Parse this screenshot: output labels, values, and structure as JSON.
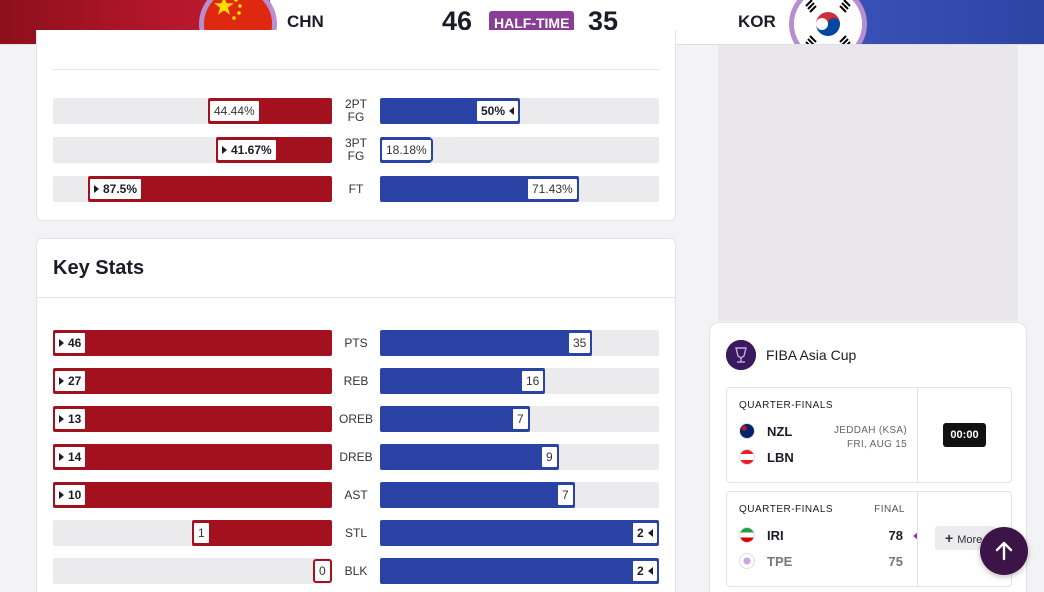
{
  "header": {
    "home": {
      "code": "CHN",
      "score": "46",
      "color": "#a3111f"
    },
    "away": {
      "code": "KOR",
      "score": "35",
      "color": "#2a43a4"
    },
    "status": "HALF-TIME"
  },
  "shooting": {
    "rows": [
      {
        "label_line1": "2PT",
        "label_line2": "FG",
        "home_value": "44.44%",
        "away_value": "50%",
        "home_fraction": 0.4444,
        "away_fraction": 0.5,
        "leader": "away"
      },
      {
        "label_line1": "3PT",
        "label_line2": "FG",
        "home_value": "41.67%",
        "away_value": "18.18%",
        "home_fraction": 0.4167,
        "away_fraction": 0.1818,
        "leader": "home"
      },
      {
        "label_line1": "FT",
        "label_line2": "",
        "home_value": "87.5%",
        "away_value": "71.43%",
        "home_fraction": 0.875,
        "away_fraction": 0.7143,
        "leader": "home"
      }
    ]
  },
  "key_stats": {
    "title": "Key Stats",
    "rows": [
      {
        "label": "PTS",
        "home_value": "46",
        "away_value": "35",
        "home_fraction": 1.0,
        "away_fraction": 0.761,
        "leader": "home"
      },
      {
        "label": "REB",
        "home_value": "27",
        "away_value": "16",
        "home_fraction": 1.0,
        "away_fraction": 0.593,
        "leader": "home"
      },
      {
        "label": "OREB",
        "home_value": "13",
        "away_value": "7",
        "home_fraction": 1.0,
        "away_fraction": 0.538,
        "leader": "home"
      },
      {
        "label": "DREB",
        "home_value": "14",
        "away_value": "9",
        "home_fraction": 1.0,
        "away_fraction": 0.643,
        "leader": "home"
      },
      {
        "label": "AST",
        "home_value": "10",
        "away_value": "7",
        "home_fraction": 1.0,
        "away_fraction": 0.7,
        "leader": "home"
      },
      {
        "label": "STL",
        "home_value": "1",
        "away_value": "2",
        "home_fraction": 0.5,
        "away_fraction": 1.0,
        "leader": "away"
      },
      {
        "label": "BLK",
        "home_value": "0",
        "away_value": "2",
        "home_fraction": 0.0,
        "away_fraction": 1.0,
        "leader": "away"
      }
    ]
  },
  "sidebar": {
    "competition": "FIBA Asia Cup",
    "games": [
      {
        "round": "QUARTER-FINALS",
        "teams": [
          {
            "code": "NZL"
          },
          {
            "code": "LBN"
          }
        ],
        "venue": "JEDDAH (KSA)",
        "date": "FRI, AUG 15",
        "clock": "00:00"
      },
      {
        "round": "QUARTER-FINALS",
        "status": "FINAL",
        "teams": [
          {
            "code": "IRI",
            "score": "78"
          },
          {
            "code": "TPE",
            "score": "75"
          }
        ],
        "more_label": "More"
      }
    ]
  },
  "icons": {
    "leader_marker": "triangle-icon",
    "scroll_top": "arrow-up-icon",
    "more": "plus-icon"
  }
}
